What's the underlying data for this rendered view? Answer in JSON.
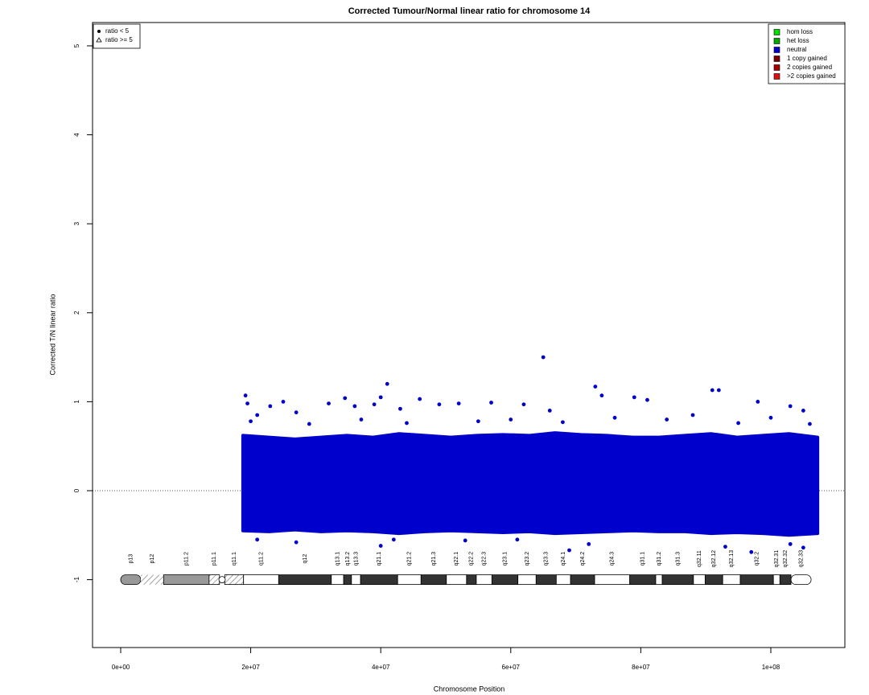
{
  "chart_data": {
    "type": "scatter",
    "title": "Corrected Tumour/Normal linear ratio for chromosome  14",
    "x_label": "Chromosome Position",
    "y_label": "Corrected T/N linear ratio",
    "xlim": [
      -4330000,
      111390000
    ],
    "ylim": [
      -1.763,
      5.262
    ],
    "xticks": [
      {
        "value": 0,
        "label": "0e+00"
      },
      {
        "value": 20000000,
        "label": "2e+07"
      },
      {
        "value": 40000000,
        "label": "4e+07"
      },
      {
        "value": 60000000,
        "label": "6e+07"
      },
      {
        "value": 80000000,
        "label": "8e+07"
      },
      {
        "value": 100000000,
        "label": "1e+08"
      }
    ],
    "yticks": [
      -1,
      0,
      1,
      2,
      3,
      4,
      5
    ],
    "hline": 0,
    "color": "#0000cc",
    "dense_band": {
      "x": [
        18800000,
        22800000,
        26800000,
        30800000,
        34800000,
        38800000,
        42800000,
        46800000,
        50800000,
        54800000,
        58800000,
        62800000,
        66800000,
        70800000,
        74800000,
        78800000,
        82800000,
        86800000,
        90800000,
        94800000,
        98800000,
        102800000,
        107200000
      ],
      "high": [
        0.62,
        0.6,
        0.58,
        0.6,
        0.62,
        0.6,
        0.64,
        0.62,
        0.6,
        0.62,
        0.63,
        0.62,
        0.65,
        0.63,
        0.62,
        0.6,
        0.6,
        0.62,
        0.64,
        0.6,
        0.62,
        0.64,
        0.6
      ],
      "low": [
        -0.45,
        -0.46,
        -0.44,
        -0.46,
        -0.45,
        -0.46,
        -0.48,
        -0.46,
        -0.45,
        -0.46,
        -0.47,
        -0.46,
        -0.48,
        -0.47,
        -0.46,
        -0.45,
        -0.46,
        -0.46,
        -0.48,
        -0.47,
        -0.48,
        -0.5,
        -0.48
      ]
    },
    "x": [
      19200000,
      19500000,
      21000000,
      23000000,
      25000000,
      27000000,
      32000000,
      34500000,
      36000000,
      39000000,
      40000000,
      41000000,
      43000000,
      46000000,
      49000000,
      52000000,
      57000000,
      62000000,
      65000000,
      66000000,
      73000000,
      74000000,
      79000000,
      81000000,
      91000000,
      92000000,
      98000000,
      103000000,
      105000000,
      20000000,
      29000000,
      37000000,
      44000000,
      55000000,
      60000000,
      68000000,
      76000000,
      84000000,
      88000000,
      95000000,
      100000000,
      106000000,
      21000000,
      27000000,
      40000000,
      42000000,
      53000000,
      61000000,
      69000000,
      72000000,
      93000000,
      97000000,
      103000000,
      105000000
    ],
    "values": [
      1.07,
      0.98,
      0.85,
      0.95,
      1.0,
      0.88,
      0.98,
      1.04,
      0.95,
      0.97,
      1.05,
      1.2,
      0.92,
      1.03,
      0.97,
      0.98,
      0.99,
      0.97,
      1.5,
      0.9,
      1.17,
      1.07,
      1.05,
      1.02,
      1.13,
      1.13,
      1.0,
      0.95,
      0.9,
      0.78,
      0.75,
      0.8,
      0.76,
      0.78,
      0.8,
      0.77,
      0.82,
      0.8,
      0.85,
      0.76,
      0.82,
      0.75,
      -0.55,
      -0.58,
      -0.62,
      -0.55,
      -0.56,
      -0.55,
      -0.67,
      -0.6,
      -0.63,
      -0.69,
      -0.6,
      -0.64
    ],
    "point_legend": [
      {
        "label": "ratio < 5",
        "marker": "dot"
      },
      {
        "label": "ratio >= 5",
        "marker": "triangle"
      }
    ],
    "copy_legend": [
      {
        "label": "hom loss",
        "color": "#00dd00"
      },
      {
        "label": "het loss",
        "color": "#00aa00"
      },
      {
        "label": "neutral",
        "color": "#0000cc"
      },
      {
        "label": "1 copy gained",
        "color": "#7a0000"
      },
      {
        "label": "2 copies gained",
        "color": "#aa0000"
      },
      {
        "label": ">2 copies gained",
        "color": "#dd1111"
      }
    ],
    "ideogram_y": -1,
    "bands": [
      {
        "name": "p13",
        "start": 0,
        "end": 3100000,
        "stain": "gvar"
      },
      {
        "name": "p12",
        "start": 3100000,
        "end": 6600000,
        "stain": "stalk"
      },
      {
        "name": "p11.2",
        "start": 6600000,
        "end": 13600000,
        "stain": "gvar"
      },
      {
        "name": "p11.1",
        "start": 13600000,
        "end": 15200000,
        "stain": "acen"
      },
      {
        "name": "q11.1",
        "start": 16000000,
        "end": 18900000,
        "stain": "acen"
      },
      {
        "name": "q11.2",
        "start": 18900000,
        "end": 24300000,
        "stain": "gneg"
      },
      {
        "name": "q12",
        "start": 24300000,
        "end": 32400000,
        "stain": "gpos"
      },
      {
        "name": "q13.1",
        "start": 32400000,
        "end": 34300000,
        "stain": "gneg"
      },
      {
        "name": "q13.2",
        "start": 34300000,
        "end": 35500000,
        "stain": "gpos"
      },
      {
        "name": "q13.3",
        "start": 35500000,
        "end": 36900000,
        "stain": "gneg"
      },
      {
        "name": "q21.1",
        "start": 36900000,
        "end": 42600000,
        "stain": "gpos"
      },
      {
        "name": "q21.2",
        "start": 42600000,
        "end": 46200000,
        "stain": "gneg"
      },
      {
        "name": "q21.3",
        "start": 46200000,
        "end": 50100000,
        "stain": "gpos"
      },
      {
        "name": "q22.1",
        "start": 50100000,
        "end": 53200000,
        "stain": "gneg"
      },
      {
        "name": "q22.2",
        "start": 53200000,
        "end": 54700000,
        "stain": "gpos"
      },
      {
        "name": "q22.3",
        "start": 54700000,
        "end": 57100000,
        "stain": "gneg"
      },
      {
        "name": "q23.1",
        "start": 57100000,
        "end": 61100000,
        "stain": "gpos"
      },
      {
        "name": "q23.2",
        "start": 61100000,
        "end": 63900000,
        "stain": "gneg"
      },
      {
        "name": "q23.3",
        "start": 63900000,
        "end": 67000000,
        "stain": "gpos"
      },
      {
        "name": "q24.1",
        "start": 67000000,
        "end": 69200000,
        "stain": "gneg"
      },
      {
        "name": "q24.2",
        "start": 69200000,
        "end": 72900000,
        "stain": "gpos"
      },
      {
        "name": "q24.3",
        "start": 72900000,
        "end": 78300000,
        "stain": "gneg"
      },
      {
        "name": "q31.1",
        "start": 78300000,
        "end": 82300000,
        "stain": "gpos"
      },
      {
        "name": "q31.2",
        "start": 82300000,
        "end": 83300000,
        "stain": "gneg"
      },
      {
        "name": "q31.3",
        "start": 83300000,
        "end": 88100000,
        "stain": "gpos"
      },
      {
        "name": "q32.11",
        "start": 88100000,
        "end": 89900000,
        "stain": "gneg"
      },
      {
        "name": "q32.12",
        "start": 89900000,
        "end": 92600000,
        "stain": "gpos"
      },
      {
        "name": "q32.13",
        "start": 92600000,
        "end": 95300000,
        "stain": "gneg"
      },
      {
        "name": "q32.2",
        "start": 95300000,
        "end": 100400000,
        "stain": "gpos"
      },
      {
        "name": "q32.31",
        "start": 100400000,
        "end": 101400000,
        "stain": "gneg"
      },
      {
        "name": "q32.32",
        "start": 101400000,
        "end": 103100000,
        "stain": "gpos"
      },
      {
        "name": "q32.33",
        "start": 103100000,
        "end": 106200000,
        "stain": "gneg"
      }
    ]
  }
}
